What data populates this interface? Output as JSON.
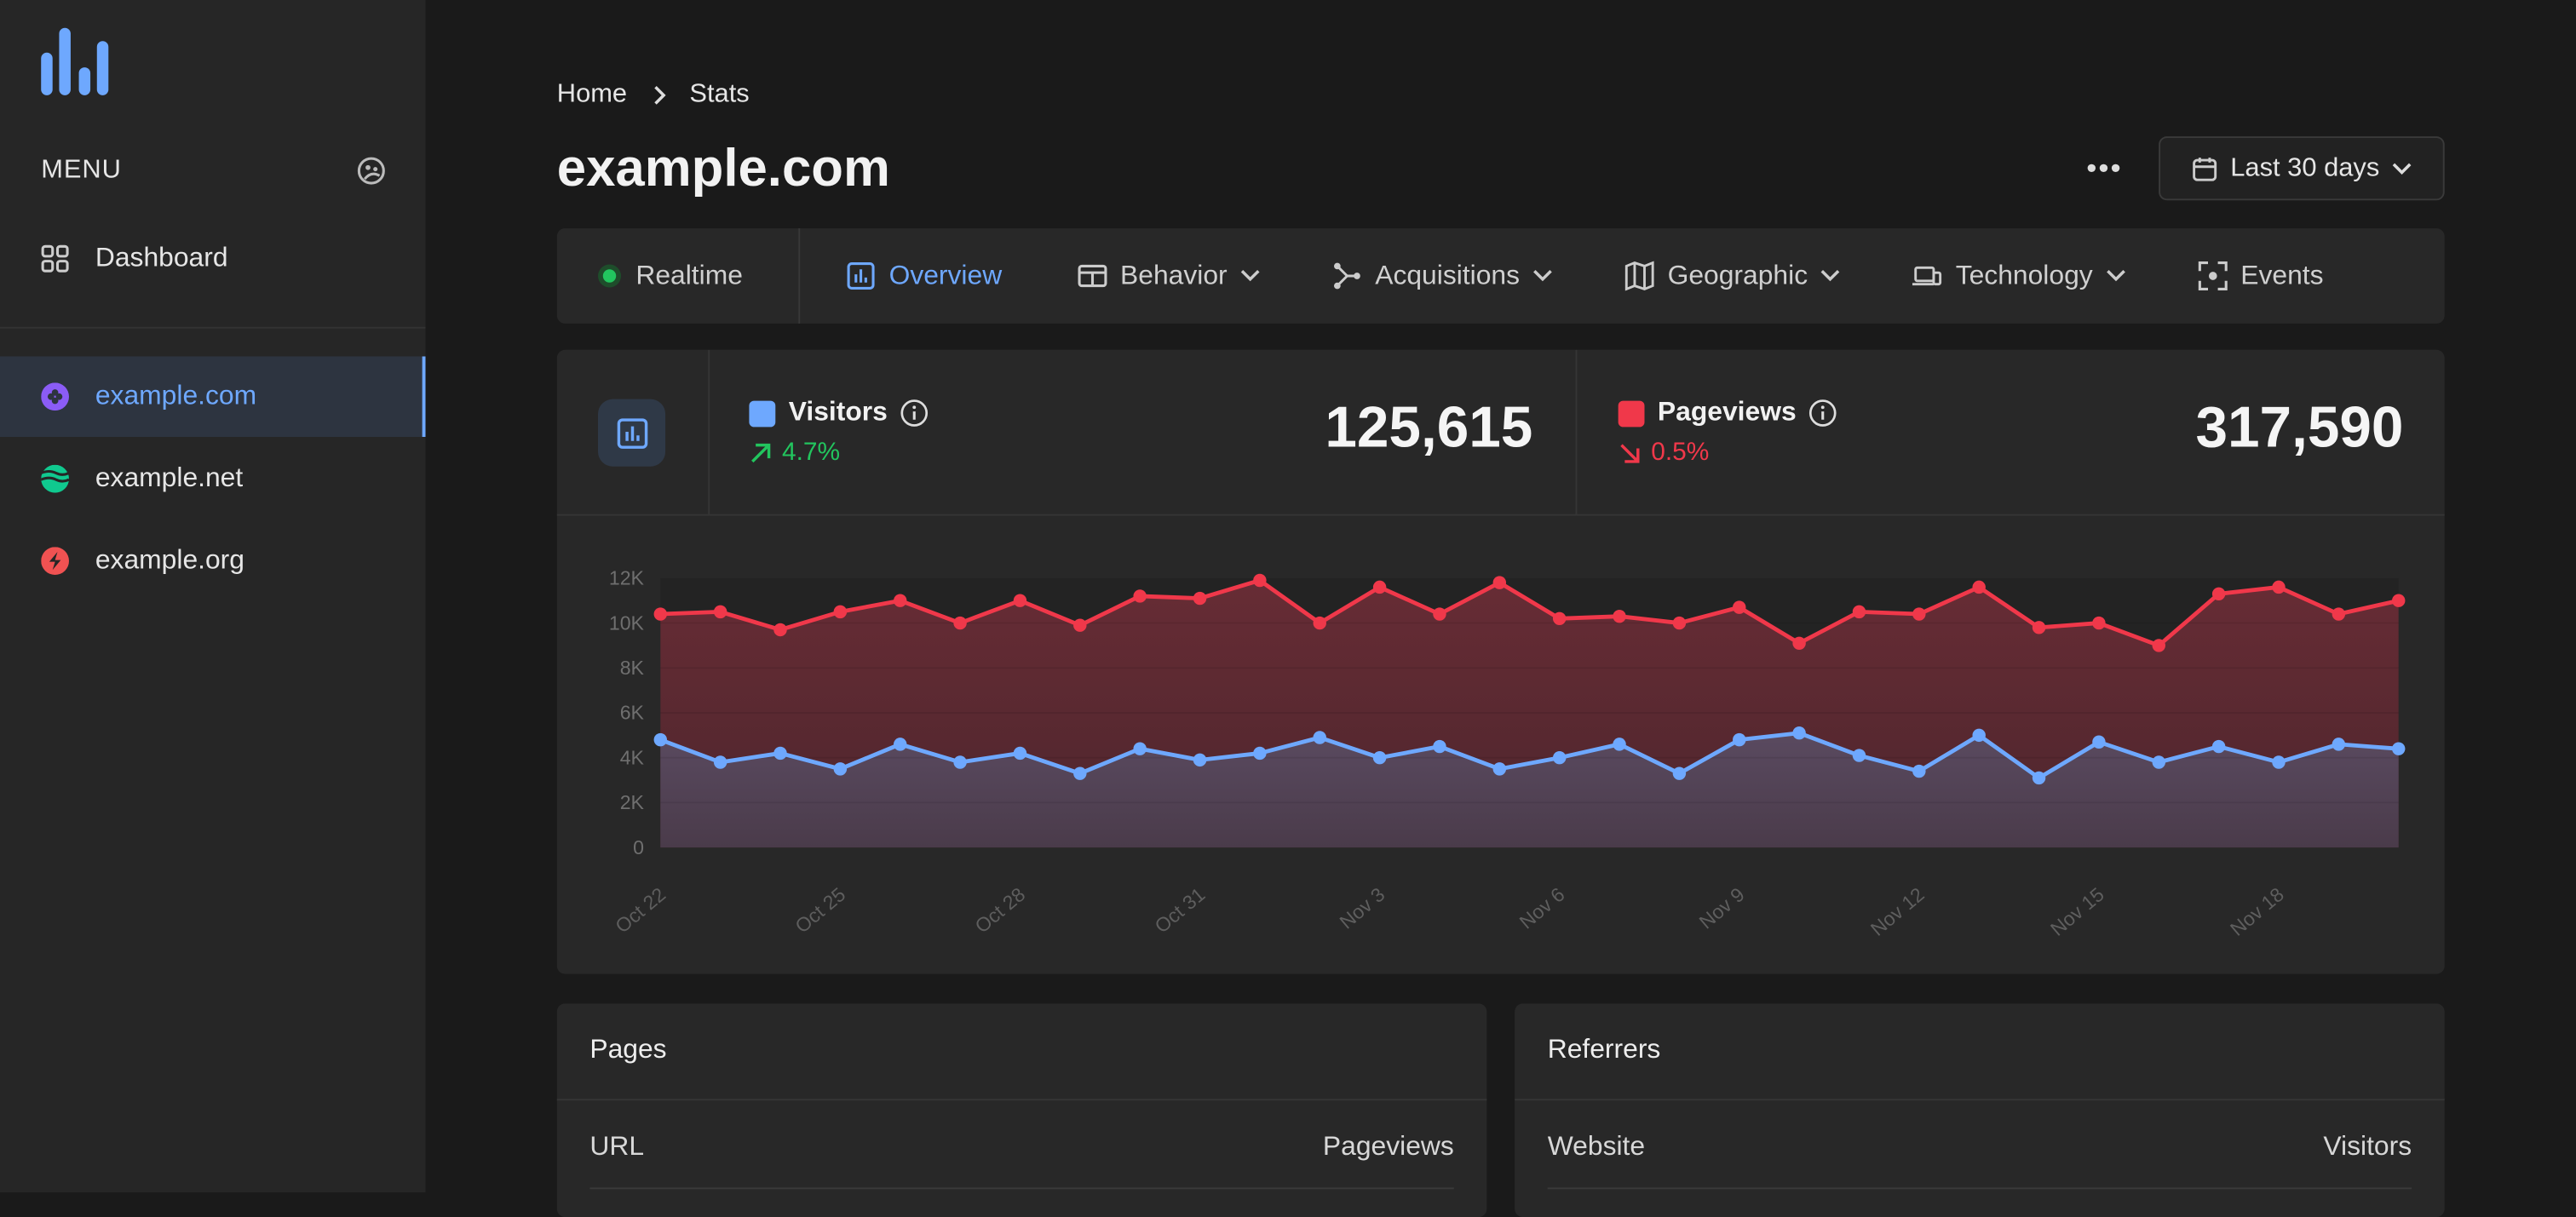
{
  "sidebar": {
    "menu_label": "MENU",
    "dashboard_label": "Dashboard",
    "sites": [
      {
        "label": "example.com",
        "icon": "purple-flower-icon",
        "color": "#8b5cf6",
        "active": true
      },
      {
        "label": "example.net",
        "icon": "green-waves-icon",
        "color": "#10c98f",
        "active": false
      },
      {
        "label": "example.org",
        "icon": "red-bolt-icon",
        "color": "#f05252",
        "active": false
      }
    ]
  },
  "header": {
    "breadcrumb": [
      "Home",
      "Stats"
    ],
    "title": "example.com",
    "more_label": "•••",
    "date_range": "Last 30 days"
  },
  "tabs": [
    {
      "label": "Realtime",
      "icon": "live-dot-icon"
    },
    {
      "label": "Overview",
      "icon": "bar-chart-icon",
      "active": true
    },
    {
      "label": "Behavior",
      "icon": "window-icon",
      "dropdown": true
    },
    {
      "label": "Acquisitions",
      "icon": "branch-icon",
      "dropdown": true
    },
    {
      "label": "Geographic",
      "icon": "map-icon",
      "dropdown": true
    },
    {
      "label": "Technology",
      "icon": "devices-icon",
      "dropdown": true
    },
    {
      "label": "Events",
      "icon": "focus-icon"
    }
  ],
  "metrics": {
    "visitors": {
      "label": "Visitors",
      "change": "4.7%",
      "direction": "up",
      "value": "125,615",
      "color": "#6ea8fe",
      "change_color": "#22c55e"
    },
    "pageviews": {
      "label": "Pageviews",
      "change": "0.5%",
      "direction": "down",
      "value": "317,590",
      "color": "#f0384a",
      "change_color": "#f0384a"
    }
  },
  "chart_data": {
    "type": "area",
    "x": [
      "Oct 22",
      "Oct 23",
      "Oct 24",
      "Oct 25",
      "Oct 26",
      "Oct 27",
      "Oct 28",
      "Oct 29",
      "Oct 30",
      "Oct 31",
      "Nov 1",
      "Nov 2",
      "Nov 3",
      "Nov 4",
      "Nov 5",
      "Nov 6",
      "Nov 7",
      "Nov 8",
      "Nov 9",
      "Nov 10",
      "Nov 11",
      "Nov 12",
      "Nov 13",
      "Nov 14",
      "Nov 15",
      "Nov 16",
      "Nov 17",
      "Nov 18",
      "Nov 19",
      "Nov 20"
    ],
    "x_tick_labels": [
      "Oct 22",
      "Oct 25",
      "Oct 28",
      "Oct 31",
      "Nov 3",
      "Nov 6",
      "Nov 9",
      "Nov 12",
      "Nov 15",
      "Nov 18"
    ],
    "y_tick_labels": [
      "0",
      "2K",
      "4K",
      "6K",
      "8K",
      "10K",
      "12K"
    ],
    "ylim": [
      0,
      12000
    ],
    "grid": true,
    "series": [
      {
        "name": "Pageviews",
        "color": "#f0384a",
        "values": [
          10400,
          10500,
          9700,
          10500,
          11000,
          10000,
          11000,
          9900,
          11200,
          11100,
          11900,
          10000,
          11600,
          10400,
          11800,
          10200,
          10300,
          10000,
          10700,
          9100,
          10500,
          10400,
          11600,
          9800,
          10000,
          9000,
          11300,
          11600,
          10400,
          11000
        ]
      },
      {
        "name": "Visitors",
        "color": "#6ea8fe",
        "values": [
          4800,
          3800,
          4200,
          3500,
          4600,
          3800,
          4200,
          3300,
          4400,
          3900,
          4200,
          4900,
          4000,
          4500,
          3500,
          4000,
          4600,
          3300,
          4800,
          5100,
          4100,
          3400,
          5000,
          3100,
          4700,
          3800,
          4500,
          3800,
          4600,
          4400
        ]
      }
    ]
  },
  "panels": {
    "pages": {
      "title": "Pages",
      "col1": "URL",
      "col2": "Pageviews"
    },
    "referrers": {
      "title": "Referrers",
      "col1": "Website",
      "col2": "Visitors"
    }
  }
}
